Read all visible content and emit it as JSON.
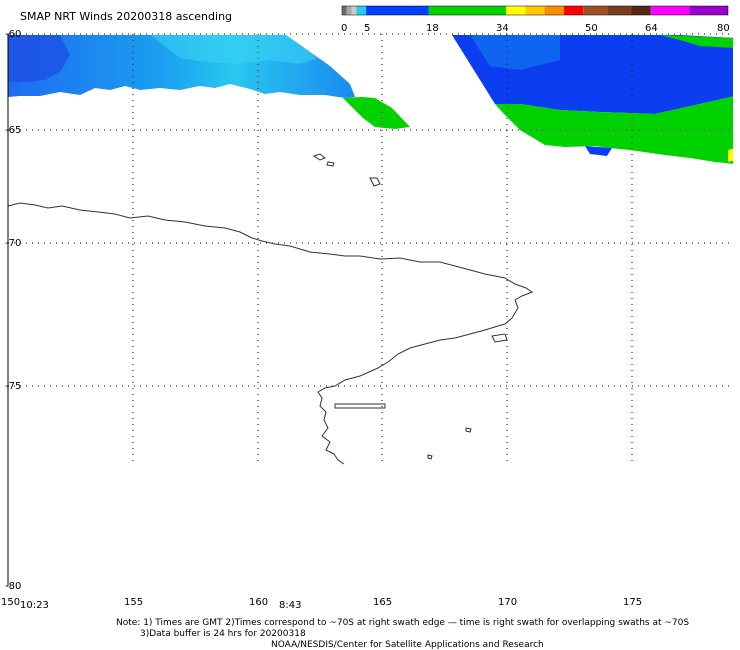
{
  "title": "SMAP NRT Winds 20200318 ascending",
  "colorbar": {
    "tick_labels": [
      "0",
      "5",
      "18",
      "34",
      "50",
      "64",
      "80"
    ],
    "segments": [
      {
        "from": 0,
        "to": 1,
        "color": "#6e6e6e"
      },
      {
        "from": 1,
        "to": 2,
        "color": "#a8a8a8"
      },
      {
        "from": 2,
        "to": 3,
        "color": "#c8c8c8"
      },
      {
        "from": 3,
        "to": 5,
        "color": "#28c8f0"
      },
      {
        "from": 5,
        "to": 18,
        "color": "#0040ff"
      },
      {
        "from": 18,
        "to": 34,
        "color": "#00d200"
      },
      {
        "from": 34,
        "to": 38,
        "color": "#ffff00"
      },
      {
        "from": 38,
        "to": 42,
        "color": "#ffc800"
      },
      {
        "from": 42,
        "to": 46,
        "color": "#ff8c00"
      },
      {
        "from": 46,
        "to": 50,
        "color": "#ff0000"
      },
      {
        "from": 50,
        "to": 55,
        "color": "#a05028"
      },
      {
        "from": 55,
        "to": 60,
        "color": "#783c1e"
      },
      {
        "from": 60,
        "to": 64,
        "color": "#502814"
      },
      {
        "from": 64,
        "to": 72,
        "color": "#ff00ff"
      },
      {
        "from": 72,
        "to": 80,
        "color": "#9600c8"
      }
    ]
  },
  "map": {
    "lat_labels": [
      "-60",
      "-65",
      "-70",
      "-75",
      "-80"
    ],
    "lon_labels": [
      "150",
      "155",
      "160",
      "165",
      "170",
      "175"
    ]
  },
  "swath_times": [
    "10:23",
    "8:43"
  ],
  "notes": {
    "line1": "Note: 1) Times are GMT 2)Times correspond to ~70S at right swath edge — time is right swath for overlapping swaths at ~70S",
    "line2": "3)Data buffer is 24 hrs for 20200318",
    "line3": "NOAA/NESDIS/Center for Satellite Applications and Research"
  },
  "colors": {
    "calm_light": "#28c8f0",
    "moderate_blue": "#0040ff",
    "strong_green": "#00d200",
    "gale_yellow": "#ffff00"
  }
}
